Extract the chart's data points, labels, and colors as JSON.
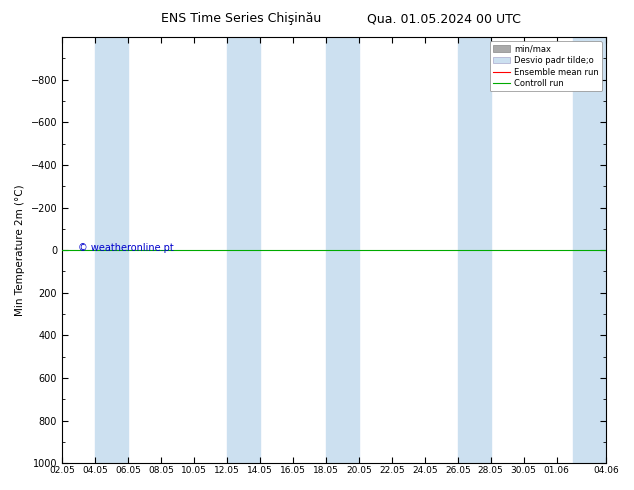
{
  "title_left": "ENS Time Series Chişinău",
  "title_right": "Qua. 01.05.2024 00 UTC",
  "ylabel": "Min Temperature 2m (°C)",
  "ylim_top": -1000,
  "ylim_bottom": 1000,
  "yticks": [
    -800,
    -600,
    -400,
    -200,
    0,
    200,
    400,
    600,
    800,
    1000
  ],
  "xtick_labels": [
    "02.05",
    "04.05",
    "06.05",
    "08.05",
    "10.05",
    "12.05",
    "14.05",
    "16.05",
    "18.05",
    "20.05",
    "22.05",
    "24.05",
    "26.05",
    "28.05",
    "30.05",
    "01.06",
    "04.06"
  ],
  "xtick_pos": [
    0,
    2,
    4,
    6,
    8,
    10,
    12,
    14,
    16,
    18,
    20,
    22,
    24,
    26,
    28,
    30,
    33
  ],
  "control_run_y": 0,
  "stripe_color": "#cce0f0",
  "bg_color": "#ffffff",
  "control_run_color": "#00aa00",
  "ensemble_mean_color": "#ff0000",
  "minmax_color": "#aaaaaa",
  "stddev_color": "#cce0f0",
  "watermark": "© weatheronline.pt",
  "watermark_color": "#0000cc",
  "legend_minmax": "min/max",
  "legend_stddev": "Desvio padr tilde;o",
  "legend_ensemble": "Ensemble mean run",
  "legend_control": "Controll run",
  "stripe_positions": [
    2,
    10,
    16,
    24,
    31
  ],
  "stripe_widths": [
    2,
    2,
    2,
    2,
    2
  ],
  "n_days": 33
}
